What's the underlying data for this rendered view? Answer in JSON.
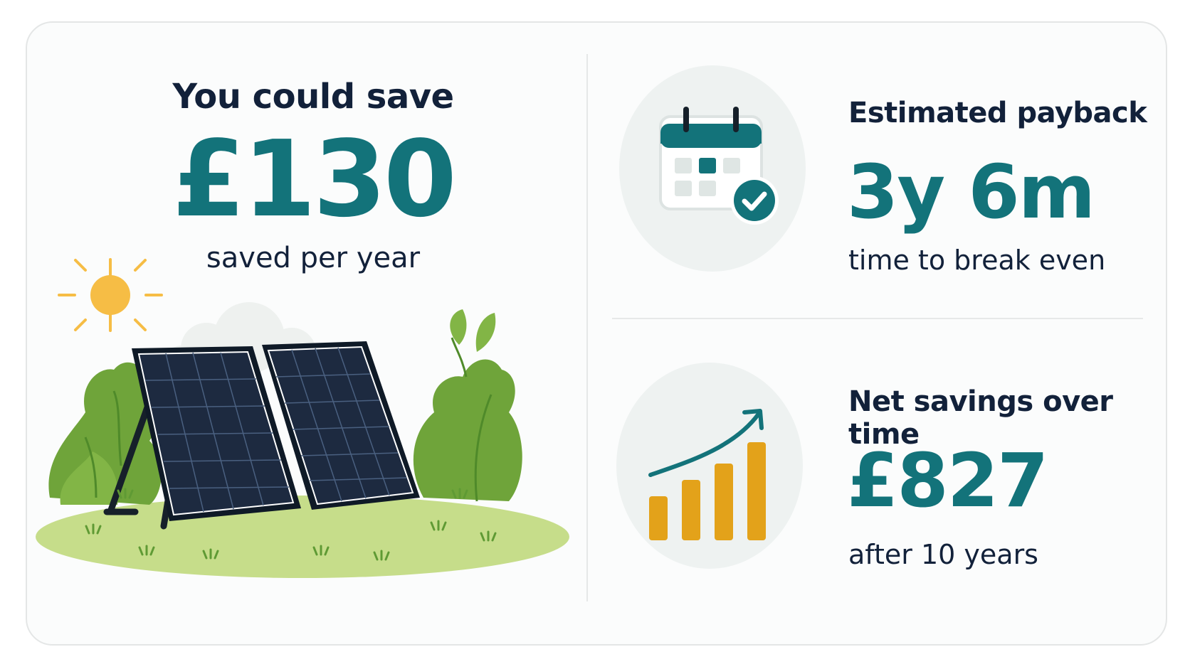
{
  "savings": {
    "title": "You could save",
    "value": "£130",
    "caption": "saved per year"
  },
  "payback": {
    "label": "Estimated payback",
    "value": "3y 6m",
    "caption": "time to break even",
    "icon": "calendar-check-icon"
  },
  "net_savings": {
    "label": "Net savings over time",
    "value": "£827",
    "caption": "after 10 years",
    "icon": "growth-chart-icon"
  },
  "colors": {
    "accent": "#13737a",
    "text": "#12213a",
    "bar": "#e3a21a",
    "sun": "#f6bd45",
    "grass": "#c6dd8a",
    "foliage": "#6fa43a"
  }
}
